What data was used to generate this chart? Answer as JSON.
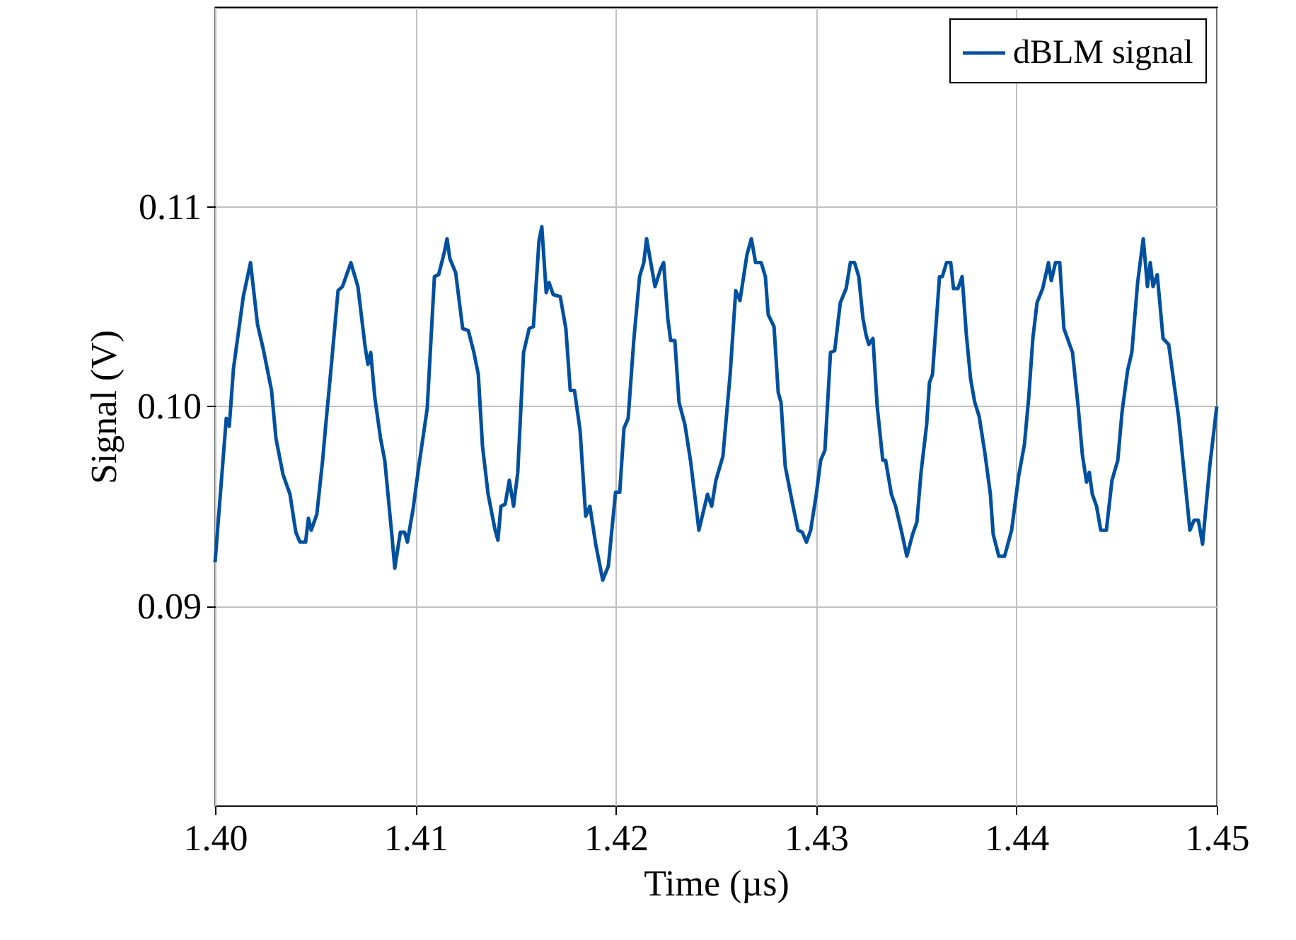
{
  "chart_data": {
    "type": "line",
    "xlabel": "Time (µs)",
    "ylabel": "Signal (V)",
    "xlim": [
      1.4,
      1.45
    ],
    "ylim": [
      0.08,
      0.12
    ],
    "xticks": [
      {
        "value": 1.4,
        "label": "1.40"
      },
      {
        "value": 1.41,
        "label": "1.41"
      },
      {
        "value": 1.42,
        "label": "1.42"
      },
      {
        "value": 1.43,
        "label": "1.43"
      },
      {
        "value": 1.44,
        "label": "1.44"
      },
      {
        "value": 1.45,
        "label": "1.45"
      }
    ],
    "yticks": [
      {
        "value": 0.09,
        "label": "0.09"
      },
      {
        "value": 0.1,
        "label": "0.10"
      },
      {
        "value": 0.11,
        "label": "0.11"
      }
    ],
    "grid": true,
    "legend": "top right",
    "marker": "none",
    "line_style": "solid",
    "series": [
      {
        "name": "dBLM signal",
        "color": "#0050a0",
        "x": [
          1.4,
          1.40056,
          1.40071,
          1.40092,
          1.40141,
          1.40177,
          1.40212,
          1.4024,
          1.40282,
          1.40304,
          1.40339,
          1.40374,
          1.40403,
          1.40424,
          1.40452,
          1.40466,
          1.4048,
          1.40508,
          1.40537,
          1.40551,
          1.40579,
          1.40614,
          1.40636,
          1.40678,
          1.40713,
          1.40749,
          1.40763,
          1.40777,
          1.40798,
          1.40826,
          1.40847,
          1.40883,
          1.40897,
          1.40925,
          1.40946,
          1.4096,
          1.40989,
          1.41017,
          1.41059,
          1.41095,
          1.41116,
          1.41144,
          1.41158,
          1.41172,
          1.41201,
          1.41236,
          1.41264,
          1.41292,
          1.41314,
          1.41335,
          1.41363,
          1.41398,
          1.41412,
          1.41427,
          1.41448,
          1.41469,
          1.4149,
          1.41511,
          1.4154,
          1.41568,
          1.41589,
          1.41617,
          1.41631,
          1.41653,
          1.41667,
          1.41688,
          1.41723,
          1.41751,
          1.41773,
          1.41794,
          1.41822,
          1.4185,
          1.41871,
          1.419,
          1.41935,
          1.41963,
          1.41999,
          1.4202,
          1.42041,
          1.42062,
          1.4209,
          1.42119,
          1.4214,
          1.42154,
          1.42196,
          1.42225,
          1.42239,
          1.4226,
          1.42274,
          1.42295,
          1.42316,
          1.42345,
          1.42373,
          1.42401,
          1.42415,
          1.42458,
          1.42479,
          1.425,
          1.42535,
          1.42571,
          1.42599,
          1.4262,
          1.42655,
          1.42677,
          1.42698,
          1.42726,
          1.42747,
          1.42761,
          1.4279,
          1.42811,
          1.42825,
          1.42846,
          1.42881,
          1.4291,
          1.42931,
          1.42952,
          1.42973,
          1.43001,
          1.43023,
          1.43044,
          1.43072,
          1.43093,
          1.43121,
          1.4315,
          1.43171,
          1.43192,
          1.43213,
          1.43234,
          1.43249,
          1.43263,
          1.43284,
          1.43305,
          1.43333,
          1.43347,
          1.43376,
          1.43397,
          1.43425,
          1.43453,
          1.43482,
          1.43503,
          1.43524,
          1.43552,
          1.43566,
          1.43581,
          1.43616,
          1.4363,
          1.43651,
          1.43672,
          1.43686,
          1.43708,
          1.43729,
          1.4375,
          1.43771,
          1.43792,
          1.43814,
          1.43842,
          1.4387,
          1.43884,
          1.43912,
          1.43941,
          1.43976,
          1.44011,
          1.4404,
          1.44061,
          1.44082,
          1.44103,
          1.44131,
          1.4416,
          1.44174,
          1.44195,
          1.44216,
          1.44237,
          1.4428,
          1.44308,
          1.44329,
          1.4435,
          1.44364,
          1.44379,
          1.444,
          1.44421,
          1.44449,
          1.44477,
          1.44506,
          1.44527,
          1.44555,
          1.44576,
          1.44605,
          1.44633,
          1.44654,
          1.44668,
          1.44682,
          1.44703,
          1.44732,
          1.4476,
          1.44809,
          1.44866,
          1.44887,
          1.44908,
          1.44929,
          1.44965,
          1.45
        ],
        "values": [
          0.0922,
          0.0994,
          0.099,
          0.1019,
          0.1055,
          0.1072,
          0.1041,
          0.1029,
          0.1008,
          0.0984,
          0.0966,
          0.0956,
          0.0937,
          0.0932,
          0.0932,
          0.0944,
          0.0938,
          0.0946,
          0.0973,
          0.0989,
          0.1019,
          0.1058,
          0.106,
          0.1072,
          0.106,
          0.103,
          0.1021,
          0.1027,
          0.1004,
          0.0984,
          0.0973,
          0.0935,
          0.0919,
          0.0937,
          0.0937,
          0.0932,
          0.0949,
          0.097,
          0.0999,
          0.1065,
          0.1066,
          0.1077,
          0.1084,
          0.1074,
          0.1067,
          0.1039,
          0.1038,
          0.1027,
          0.1016,
          0.098,
          0.0956,
          0.0938,
          0.0933,
          0.095,
          0.0951,
          0.0963,
          0.095,
          0.0967,
          0.1027,
          0.1039,
          0.104,
          0.1083,
          0.109,
          0.1057,
          0.1062,
          0.1056,
          0.1055,
          0.1039,
          0.1008,
          0.1008,
          0.0988,
          0.0945,
          0.095,
          0.0931,
          0.0913,
          0.092,
          0.0957,
          0.0957,
          0.0989,
          0.0994,
          0.1033,
          0.1065,
          0.1072,
          0.1084,
          0.106,
          0.1069,
          0.1072,
          0.1044,
          0.1033,
          0.1033,
          0.1002,
          0.0991,
          0.0973,
          0.095,
          0.0938,
          0.0956,
          0.095,
          0.0963,
          0.0975,
          0.1016,
          0.1058,
          0.1053,
          0.1076,
          0.1084,
          0.1072,
          0.1072,
          0.1065,
          0.1046,
          0.104,
          0.1007,
          0.1002,
          0.097,
          0.0952,
          0.0938,
          0.0937,
          0.0932,
          0.0938,
          0.0956,
          0.0973,
          0.0978,
          0.1027,
          0.1028,
          0.1052,
          0.1059,
          0.1072,
          0.1072,
          0.1065,
          0.1044,
          0.1036,
          0.1031,
          0.1034,
          0.1,
          0.0973,
          0.0973,
          0.0956,
          0.095,
          0.0938,
          0.0925,
          0.0936,
          0.0942,
          0.0967,
          0.0991,
          0.1012,
          0.1016,
          0.1065,
          0.1065,
          0.1072,
          0.1072,
          0.1059,
          0.1059,
          0.1065,
          0.1036,
          0.1014,
          0.1002,
          0.0995,
          0.0977,
          0.0956,
          0.0936,
          0.0925,
          0.0925,
          0.0938,
          0.0965,
          0.0981,
          0.1004,
          0.1034,
          0.1052,
          0.1059,
          0.1072,
          0.1063,
          0.1072,
          0.1072,
          0.1039,
          0.1027,
          0.1,
          0.0976,
          0.0962,
          0.0967,
          0.0956,
          0.095,
          0.0938,
          0.0938,
          0.0963,
          0.0973,
          0.0997,
          0.1018,
          0.1027,
          0.1062,
          0.1084,
          0.106,
          0.1072,
          0.106,
          0.1066,
          0.1034,
          0.1031,
          0.0995,
          0.0938,
          0.0943,
          0.0943,
          0.0931,
          0.097,
          0.1
        ]
      }
    ]
  }
}
